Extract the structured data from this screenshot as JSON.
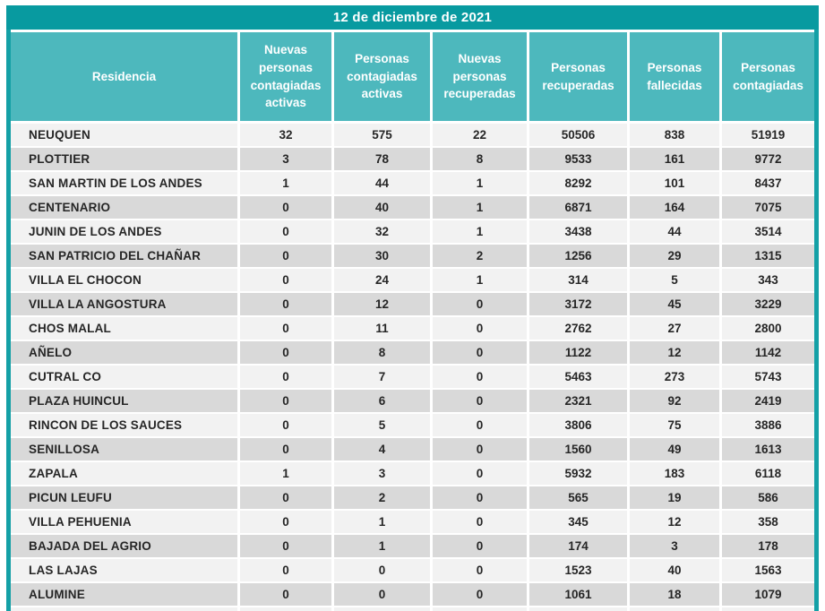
{
  "colors": {
    "title_bar": "#089aa0",
    "header_cell": "#4db8bd",
    "border_teal": "#14a0a6",
    "row_light": "#f2f2f2",
    "row_dark": "#d9d9d9",
    "text_dark": "#262626"
  },
  "chart_data": {
    "type": "table",
    "title": "12 de diciembre de 2021",
    "columns": [
      "Residencia",
      "Nuevas personas contagiadas activas",
      "Personas contagiadas activas",
      "Nuevas personas recuperadas",
      "Personas recuperadas",
      "Personas fallecidas",
      "Personas contagiadas"
    ],
    "rows": [
      [
        "NEUQUEN",
        32,
        575,
        22,
        50506,
        838,
        51919
      ],
      [
        "PLOTTIER",
        3,
        78,
        8,
        9533,
        161,
        9772
      ],
      [
        "SAN MARTIN DE LOS ANDES",
        1,
        44,
        1,
        8292,
        101,
        8437
      ],
      [
        "CENTENARIO",
        0,
        40,
        1,
        6871,
        164,
        7075
      ],
      [
        "JUNIN DE LOS ANDES",
        0,
        32,
        1,
        3438,
        44,
        3514
      ],
      [
        "SAN PATRICIO DEL CHAÑAR",
        0,
        30,
        2,
        1256,
        29,
        1315
      ],
      [
        "VILLA EL CHOCON",
        0,
        24,
        1,
        314,
        5,
        343
      ],
      [
        "VILLA LA ANGOSTURA",
        0,
        12,
        0,
        3172,
        45,
        3229
      ],
      [
        "CHOS MALAL",
        0,
        11,
        0,
        2762,
        27,
        2800
      ],
      [
        "AÑELO",
        0,
        8,
        0,
        1122,
        12,
        1142
      ],
      [
        "CUTRAL CO",
        0,
        7,
        0,
        5463,
        273,
        5743
      ],
      [
        "PLAZA HUINCUL",
        0,
        6,
        0,
        2321,
        92,
        2419
      ],
      [
        "RINCON DE LOS SAUCES",
        0,
        5,
        0,
        3806,
        75,
        3886
      ],
      [
        "SENILLOSA",
        0,
        4,
        0,
        1560,
        49,
        1613
      ],
      [
        "ZAPALA",
        1,
        3,
        0,
        5932,
        183,
        6118
      ],
      [
        "PICUN LEUFU",
        0,
        2,
        0,
        565,
        19,
        586
      ],
      [
        "VILLA PEHUENIA",
        0,
        1,
        0,
        345,
        12,
        358
      ],
      [
        "BAJADA DEL AGRIO",
        0,
        1,
        0,
        174,
        3,
        178
      ],
      [
        "LAS LAJAS",
        0,
        0,
        0,
        1523,
        40,
        1563
      ],
      [
        "ALUMINE",
        0,
        0,
        0,
        1061,
        18,
        1079
      ]
    ]
  }
}
